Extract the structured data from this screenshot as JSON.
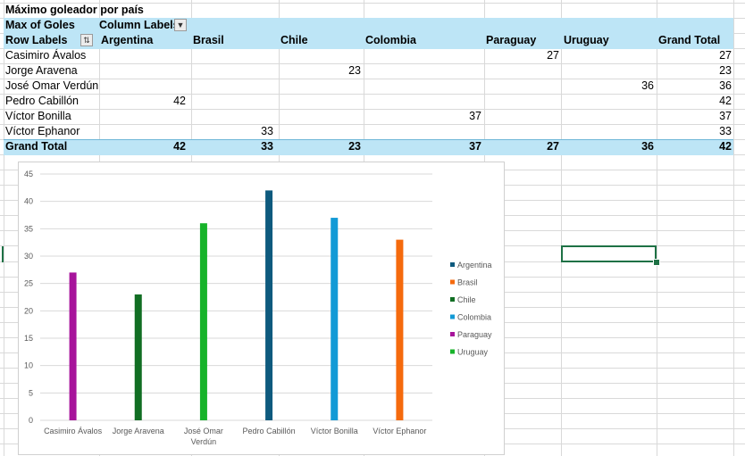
{
  "pivot": {
    "title": "Máximo goleador por país",
    "measure_label": "Max of Goles",
    "column_labels_label": "Column Labels",
    "row_labels_label": "Row Labels",
    "columns": [
      "Argentina",
      "Brasil",
      "Chile",
      "Colombia",
      "Paraguay",
      "Uruguay",
      "Grand Total"
    ],
    "rows": [
      {
        "name": "Casimiro Ávalos",
        "cells": [
          "",
          "",
          "",
          "",
          "27",
          "",
          "27"
        ]
      },
      {
        "name": "Jorge Aravena",
        "cells": [
          "",
          "",
          "23",
          "",
          "",
          "",
          "23"
        ]
      },
      {
        "name": "José Omar Verdún",
        "cells": [
          "",
          "",
          "",
          "",
          "",
          "36",
          "36"
        ]
      },
      {
        "name": "Pedro Cabillón",
        "cells": [
          "42",
          "",
          "",
          "",
          "",
          "",
          "42"
        ]
      },
      {
        "name": "Víctor Bonilla",
        "cells": [
          "",
          "",
          "",
          "37",
          "",
          "",
          "37"
        ]
      },
      {
        "name": "Víctor Ephanor",
        "cells": [
          "",
          "33",
          "",
          "",
          "",
          "",
          "33"
        ]
      }
    ],
    "grand_total_label": "Grand Total",
    "grand_total_cells": [
      "42",
      "33",
      "23",
      "37",
      "27",
      "36",
      "42"
    ]
  },
  "chart_data": {
    "type": "bar",
    "categories": [
      "Casimiro Ávalos",
      "Jorge Aravena",
      "José Omar Verdún",
      "Pedro Cabillón",
      "Víctor Bonilla",
      "Víctor Ephanor"
    ],
    "category_lines": [
      [
        "Casimiro Ávalos"
      ],
      [
        "Jorge Aravena"
      ],
      [
        "José Omar",
        "Verdún"
      ],
      [
        "Pedro Cabillón"
      ],
      [
        "Víctor Bonilla"
      ],
      [
        "Víctor Ephanor"
      ]
    ],
    "series": [
      {
        "name": "Argentina",
        "color": "#0e5a7e",
        "values": [
          null,
          null,
          null,
          42,
          null,
          null
        ]
      },
      {
        "name": "Brasil",
        "color": "#f56a0d",
        "values": [
          null,
          null,
          null,
          null,
          null,
          33
        ]
      },
      {
        "name": "Chile",
        "color": "#116e23",
        "values": [
          null,
          23,
          null,
          null,
          null,
          null
        ]
      },
      {
        "name": "Colombia",
        "color": "#129ad6",
        "values": [
          null,
          null,
          null,
          null,
          37,
          null
        ]
      },
      {
        "name": "Paraguay",
        "color": "#a7149b",
        "values": [
          27,
          null,
          null,
          null,
          null,
          null
        ]
      },
      {
        "name": "Uruguay",
        "color": "#17b32a",
        "values": [
          null,
          null,
          36,
          null,
          null,
          null
        ]
      }
    ],
    "ylim": [
      0,
      45
    ],
    "yticks": [
      0,
      5,
      10,
      15,
      20,
      25,
      30,
      35,
      40,
      45
    ],
    "grid": true,
    "legend_position": "right"
  }
}
